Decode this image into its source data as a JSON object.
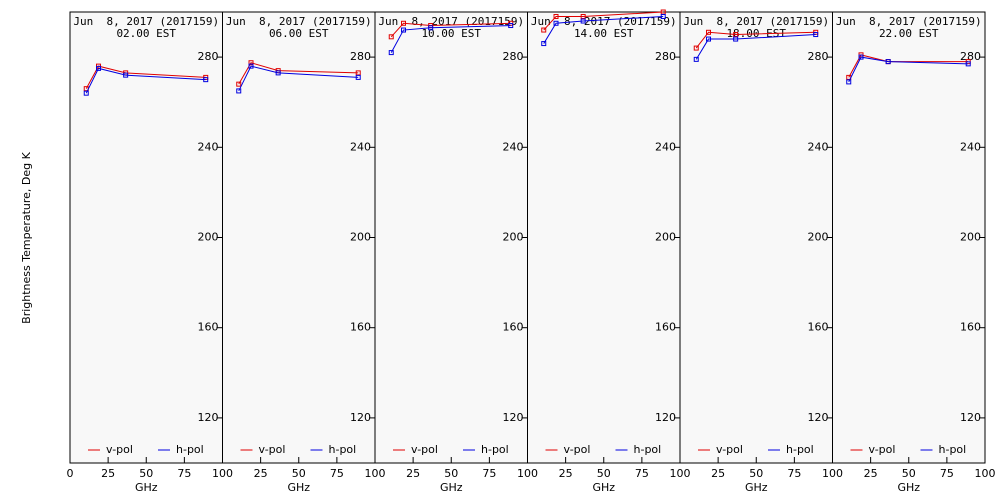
{
  "chart_data": [
    {
      "type": "line",
      "title": "Jun  8, 2017 (2017159)",
      "subtitle": "02.00 EST",
      "ylabel": "Brightness Temperature, Deg K",
      "xlabel": "GHz",
      "x": [
        10.65,
        18.7,
        36.5,
        89
      ],
      "xlim": [
        0,
        100
      ],
      "xticks": [
        0,
        25,
        50,
        75,
        100
      ],
      "ylim": [
        100,
        300
      ],
      "yticks": [
        120,
        160,
        200,
        240,
        280
      ],
      "legend": "lower center",
      "series": [
        {
          "name": "v-pol",
          "color": "#e00000",
          "values": [
            266,
            276,
            273,
            271
          ]
        },
        {
          "name": "h-pol",
          "color": "#0000e0",
          "values": [
            264,
            275,
            272,
            270
          ]
        }
      ]
    },
    {
      "type": "line",
      "title": "Jun  8, 2017 (2017159)",
      "subtitle": "06.00 EST",
      "xlabel": "GHz",
      "x": [
        10.65,
        18.7,
        36.5,
        89
      ],
      "xlim": [
        0,
        100
      ],
      "xticks": [
        25,
        50,
        75,
        100
      ],
      "ylim": [
        100,
        300
      ],
      "yticks": [
        120,
        160,
        200,
        240,
        280
      ],
      "legend": "lower center",
      "series": [
        {
          "name": "v-pol",
          "color": "#e00000",
          "values": [
            268,
            277.5,
            274,
            273
          ]
        },
        {
          "name": "h-pol",
          "color": "#0000e0",
          "values": [
            265,
            276,
            273,
            271
          ]
        }
      ]
    },
    {
      "type": "line",
      "title": "Jun  8, 2017 (2017159)",
      "subtitle": "10.00 EST",
      "xlabel": "GHz",
      "x": [
        10.65,
        18.7,
        36.5,
        89
      ],
      "xlim": [
        0,
        100
      ],
      "xticks": [
        25,
        50,
        75,
        100
      ],
      "ylim": [
        100,
        300
      ],
      "yticks": [
        120,
        160,
        200,
        240,
        280
      ],
      "legend": "lower center",
      "series": [
        {
          "name": "v-pol",
          "color": "#e00000",
          "values": [
            289,
            295,
            294,
            295
          ]
        },
        {
          "name": "h-pol",
          "color": "#0000e0",
          "values": [
            282,
            292,
            293,
            294
          ]
        }
      ]
    },
    {
      "type": "line",
      "title": "Jun  8, 2017 (2017159)",
      "subtitle": "14.00 EST",
      "xlabel": "GHz",
      "x": [
        10.65,
        18.7,
        36.5,
        89
      ],
      "xlim": [
        0,
        100
      ],
      "xticks": [
        25,
        50,
        75,
        100
      ],
      "ylim": [
        100,
        300
      ],
      "yticks": [
        120,
        160,
        200,
        240,
        280
      ],
      "legend": "lower center",
      "series": [
        {
          "name": "v-pol",
          "color": "#e00000",
          "values": [
            292,
            298,
            298,
            300
          ]
        },
        {
          "name": "h-pol",
          "color": "#0000e0",
          "values": [
            286,
            295,
            296,
            298
          ]
        }
      ]
    },
    {
      "type": "line",
      "title": "Jun  8, 2017 (2017159)",
      "subtitle": "18.00 EST",
      "xlabel": "GHz",
      "x": [
        10.65,
        18.7,
        36.5,
        89
      ],
      "xlim": [
        0,
        100
      ],
      "xticks": [
        25,
        50,
        75,
        100
      ],
      "ylim": [
        100,
        300
      ],
      "yticks": [
        120,
        160,
        200,
        240,
        280
      ],
      "legend": "lower center",
      "series": [
        {
          "name": "v-pol",
          "color": "#e00000",
          "values": [
            284,
            291,
            290,
            291
          ]
        },
        {
          "name": "h-pol",
          "color": "#0000e0",
          "values": [
            279,
            288,
            288,
            290
          ]
        }
      ]
    },
    {
      "type": "line",
      "title": "Jun  8, 2017 (2017159)",
      "subtitle": "22.00 EST",
      "xlabel": "GHz",
      "x": [
        10.65,
        18.7,
        36.5,
        89
      ],
      "xlim": [
        0,
        100
      ],
      "xticks": [
        25,
        50,
        75,
        100
      ],
      "ylim": [
        100,
        300
      ],
      "yticks": [
        120,
        160,
        200,
        240,
        280
      ],
      "legend": "lower center",
      "series": [
        {
          "name": "v-pol",
          "color": "#e00000",
          "values": [
            271,
            281,
            278,
            278
          ]
        },
        {
          "name": "h-pol",
          "color": "#0000e0",
          "values": [
            269,
            280,
            278,
            277
          ]
        }
      ]
    }
  ]
}
